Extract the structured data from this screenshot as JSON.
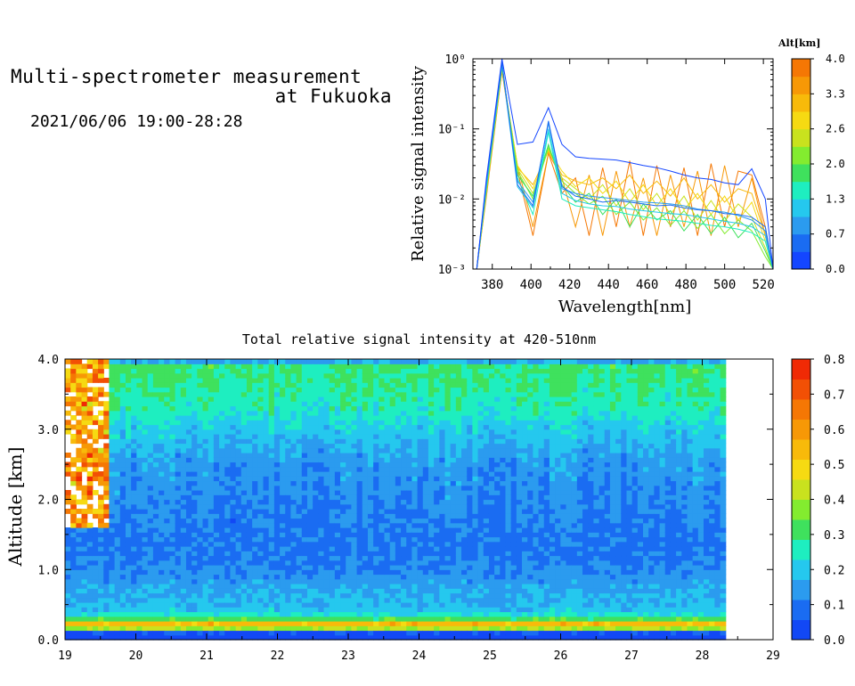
{
  "header": {
    "title_line1": "Multi-spectrometer measurement",
    "title_line2": "at Fukuoka",
    "date_range": "2021/06/06 19:00-28:28"
  },
  "chart_data": [
    {
      "type": "line",
      "xlabel": "Wavelength[nm]",
      "ylabel": "Relative signal intensity",
      "yscale": "log",
      "xlim": [
        370,
        525
      ],
      "ylim": [
        0.001,
        1
      ],
      "xticks": [
        "380",
        "400",
        "420",
        "440",
        "460",
        "480",
        "500",
        "520"
      ],
      "yticks": [
        "10⁻³",
        "10⁻²",
        "10⁻¹",
        "10⁰"
      ],
      "colorbar": {
        "label": "Alt[km]",
        "ticks": [
          "0.0",
          "0.7",
          "1.3",
          "2.0",
          "2.6",
          "3.3",
          "4.0"
        ],
        "colors": [
          "#1446ff",
          "#1a6cf2",
          "#2b9bef",
          "#25c8ee",
          "#1eeec0",
          "#3fe15d",
          "#83ec2f",
          "#c9e21e",
          "#f6da12",
          "#f8ba0a",
          "#f79806",
          "#f57704"
        ]
      },
      "x": [
        372,
        377,
        385,
        393,
        401,
        409,
        416,
        423,
        430,
        437,
        444,
        451,
        458,
        465,
        472,
        479,
        486,
        493,
        500,
        507,
        514,
        521,
        525
      ],
      "series": [
        {
          "color": "#1446ff",
          "values": [
            0.001,
            0.02,
            1.0,
            0.06,
            0.065,
            0.2,
            0.06,
            0.04,
            0.038,
            0.037,
            0.036,
            0.033,
            0.03,
            0.028,
            0.025,
            0.022,
            0.02,
            0.019,
            0.017,
            0.016,
            0.027,
            0.01,
            0.001
          ]
        },
        {
          "color": "#1a6cf2",
          "values": [
            0.001,
            0.018,
            0.9,
            0.016,
            0.008,
            0.13,
            0.015,
            0.011,
            0.01,
            0.009,
            0.0095,
            0.009,
            0.0085,
            0.008,
            0.0082,
            0.0075,
            0.007,
            0.0068,
            0.0062,
            0.006,
            0.0055,
            0.004,
            0.001
          ]
        },
        {
          "color": "#2b9bef",
          "values": [
            0.001,
            0.017,
            0.85,
            0.018,
            0.009,
            0.12,
            0.014,
            0.012,
            0.011,
            0.0105,
            0.01,
            0.0095,
            0.009,
            0.0088,
            0.0085,
            0.008,
            0.0072,
            0.0068,
            0.0065,
            0.0058,
            0.005,
            0.0035,
            0.001
          ]
        },
        {
          "color": "#25c8ee",
          "values": [
            0.001,
            0.016,
            0.82,
            0.015,
            0.0075,
            0.1,
            0.012,
            0.0095,
            0.0085,
            0.008,
            0.0078,
            0.0072,
            0.0068,
            0.0065,
            0.0062,
            0.006,
            0.0056,
            0.0052,
            0.0048,
            0.0045,
            0.004,
            0.003,
            0.001
          ]
        },
        {
          "color": "#1eeec0",
          "values": [
            0.001,
            0.015,
            0.8,
            0.02,
            0.006,
            0.09,
            0.01,
            0.008,
            0.0075,
            0.007,
            0.0066,
            0.006,
            0.0056,
            0.0052,
            0.005,
            0.0048,
            0.0045,
            0.0042,
            0.004,
            0.0037,
            0.0033,
            0.0025,
            0.001
          ]
        },
        {
          "color": "#3fe15d",
          "values": [
            0.001,
            0.014,
            0.78,
            0.022,
            0.011,
            0.06,
            0.016,
            0.009,
            0.012,
            0.006,
            0.01,
            0.004,
            0.0085,
            0.005,
            0.0068,
            0.0035,
            0.006,
            0.0032,
            0.0055,
            0.0028,
            0.0045,
            0.0018,
            0.001
          ]
        },
        {
          "color": "#83ec2f",
          "values": [
            0.001,
            0.014,
            0.76,
            0.025,
            0.01,
            0.055,
            0.018,
            0.012,
            0.0085,
            0.011,
            0.006,
            0.009,
            0.005,
            0.0075,
            0.0042,
            0.0068,
            0.0038,
            0.006,
            0.0032,
            0.005,
            0.0035,
            0.0015,
            0.001
          ]
        },
        {
          "color": "#c9e21e",
          "values": [
            0.001,
            0.013,
            0.74,
            0.027,
            0.012,
            0.052,
            0.02,
            0.014,
            0.01,
            0.016,
            0.008,
            0.014,
            0.007,
            0.012,
            0.006,
            0.011,
            0.005,
            0.0095,
            0.0048,
            0.0085,
            0.0055,
            0.002,
            0.001
          ]
        },
        {
          "color": "#f6da12",
          "values": [
            0.001,
            0.013,
            0.72,
            0.03,
            0.014,
            0.05,
            0.025,
            0.015,
            0.02,
            0.012,
            0.018,
            0.009,
            0.016,
            0.008,
            0.014,
            0.007,
            0.012,
            0.006,
            0.011,
            0.005,
            0.009,
            0.0025,
            0.001
          ]
        },
        {
          "color": "#f8ba0a",
          "values": [
            0.001,
            0.012,
            0.7,
            0.028,
            0.016,
            0.048,
            0.022,
            0.018,
            0.016,
            0.02,
            0.014,
            0.022,
            0.012,
            0.018,
            0.011,
            0.02,
            0.01,
            0.016,
            0.009,
            0.014,
            0.012,
            0.003,
            0.001
          ]
        },
        {
          "color": "#f79806",
          "values": [
            0.001,
            0.012,
            0.68,
            0.03,
            0.004,
            0.045,
            0.02,
            0.004,
            0.022,
            0.003,
            0.025,
            0.004,
            0.02,
            0.003,
            0.022,
            0.004,
            0.025,
            0.003,
            0.03,
            0.004,
            0.02,
            0.003,
            0.001
          ]
        },
        {
          "color": "#f57704",
          "values": [
            0.001,
            0.011,
            0.66,
            0.025,
            0.003,
            0.045,
            0.012,
            0.02,
            0.003,
            0.028,
            0.004,
            0.035,
            0.003,
            0.03,
            0.004,
            0.028,
            0.003,
            0.032,
            0.004,
            0.025,
            0.022,
            0.004,
            0.001
          ]
        }
      ]
    },
    {
      "type": "heatmap",
      "title": "Total relative signal intensity at 420-510nm",
      "ylabel": "Altitude [km]",
      "xlim": [
        19,
        29
      ],
      "ylim": [
        0,
        4
      ],
      "data_x_range": [
        19,
        28.33
      ],
      "xticks": [
        "19",
        "20",
        "21",
        "22",
        "23",
        "24",
        "25",
        "26",
        "27",
        "28",
        "29"
      ],
      "yticks": [
        "0.0",
        "1.0",
        "2.0",
        "3.0",
        "4.0"
      ],
      "colorbar": {
        "ticks": [
          "0.0",
          "0.1",
          "0.2",
          "0.3",
          "0.4",
          "0.5",
          "0.6",
          "0.7",
          "0.8"
        ],
        "range": [
          0,
          0.8
        ],
        "colors": [
          "#1248f5",
          "#1a6cf2",
          "#2b9bef",
          "#25c8ee",
          "#1eeec0",
          "#3fe15d",
          "#83ec2f",
          "#c9e21e",
          "#f6da12",
          "#f8ba0a",
          "#f79806",
          "#f57704",
          "#f25005",
          "#f02a05"
        ]
      },
      "profile": {
        "altitude_km": [
          0.0,
          0.12,
          0.2,
          0.3,
          0.4,
          0.6,
          0.8,
          1.0,
          1.2,
          1.4,
          1.7,
          2.0,
          2.5,
          3.0,
          3.3,
          3.6,
          3.9,
          4.0
        ],
        "intensity": [
          0.0,
          0.05,
          0.65,
          0.32,
          0.2,
          0.17,
          0.15,
          0.12,
          0.1,
          0.1,
          0.11,
          0.12,
          0.14,
          0.2,
          0.26,
          0.28,
          0.3,
          0.1
        ]
      }
    }
  ]
}
